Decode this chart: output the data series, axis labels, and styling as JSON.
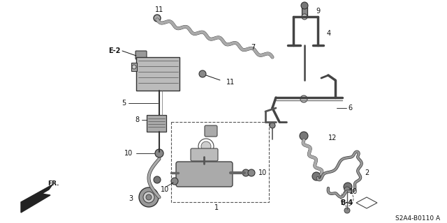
{
  "background_color": "#ffffff",
  "diagram_code": "S2A4-B0110 A",
  "fig_width": 6.4,
  "fig_height": 3.2,
  "dpi": 100,
  "gray": "#444444",
  "dark": "#111111",
  "light_gray": "#888888",
  "mid_gray": "#666666"
}
